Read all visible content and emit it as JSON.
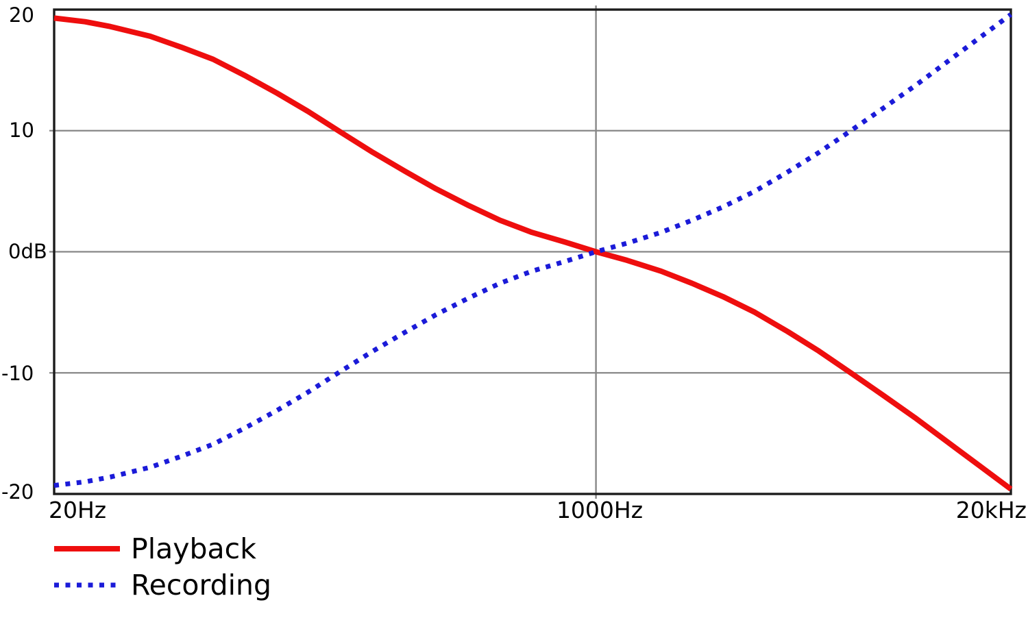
{
  "chart_data": {
    "type": "line",
    "title": "",
    "xlabel": "",
    "ylabel": "",
    "x_scale": "log",
    "x_range_hz": [
      20,
      20000
    ],
    "y_range_db": [
      -20,
      20
    ],
    "grid": true,
    "legend_position": "below-left",
    "x_ticks": [
      {
        "hz": 20,
        "label": "20Hz"
      },
      {
        "hz": 1000,
        "label": "1000Hz"
      },
      {
        "hz": 20000,
        "label": "20kHz"
      }
    ],
    "y_ticks": [
      {
        "db": 20,
        "label": "20"
      },
      {
        "db": 10,
        "label": "10"
      },
      {
        "db": 0,
        "label": "0dB"
      },
      {
        "db": -10,
        "label": "-10"
      },
      {
        "db": -20,
        "label": "-20"
      }
    ],
    "frequencies_hz": [
      20,
      25,
      30,
      40,
      50,
      63,
      80,
      100,
      125,
      160,
      200,
      250,
      315,
      400,
      500,
      630,
      800,
      1000,
      1250,
      1600,
      2000,
      2500,
      3150,
      4000,
      5000,
      6300,
      8000,
      10000,
      12500,
      16000,
      20000
    ],
    "series": [
      {
        "name": "Playback",
        "style": "solid",
        "color": "#ee0e0e",
        "values_db": [
          19.3,
          19.0,
          18.6,
          17.8,
          16.9,
          15.9,
          14.5,
          13.1,
          11.6,
          9.8,
          8.2,
          6.7,
          5.2,
          3.8,
          2.6,
          1.6,
          0.8,
          0.0,
          -0.7,
          -1.6,
          -2.6,
          -3.7,
          -5.0,
          -6.6,
          -8.2,
          -10.0,
          -11.9,
          -13.7,
          -15.6,
          -17.7,
          -19.6
        ]
      },
      {
        "name": "Recording",
        "style": "dotted",
        "color": "#1b1bd8",
        "values_db": [
          -19.3,
          -19.0,
          -18.6,
          -17.8,
          -16.9,
          -15.9,
          -14.5,
          -13.1,
          -11.6,
          -9.8,
          -8.2,
          -6.7,
          -5.2,
          -3.8,
          -2.6,
          -1.6,
          -0.8,
          0.0,
          0.7,
          1.6,
          2.6,
          3.7,
          5.0,
          6.6,
          8.2,
          10.0,
          11.9,
          13.7,
          15.6,
          17.7,
          19.6
        ]
      }
    ],
    "colors": {
      "grid": "#878787",
      "axis": "#1c1c1c",
      "text": "#000000",
      "background": "#ffffff"
    }
  }
}
